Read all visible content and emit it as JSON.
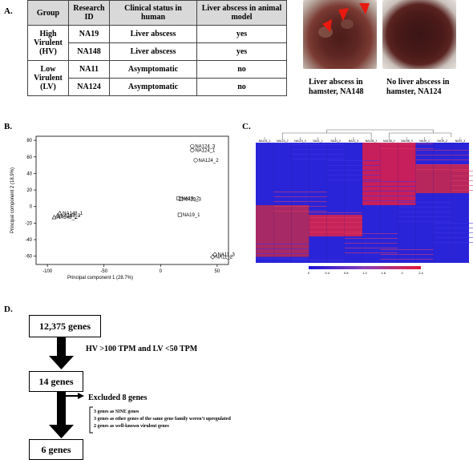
{
  "panel_labels": {
    "a": "A.",
    "b": "B.",
    "c": "C.",
    "d": "D."
  },
  "table": {
    "headers": [
      "Group",
      "Research ID",
      "Clinical status in human",
      "Liver abscess in animal model"
    ],
    "groups": [
      "High Virulent (HV)",
      "Low Virulent (LV)"
    ],
    "rows": [
      {
        "id": "NA19",
        "status": "Liver abscess",
        "animal": "yes"
      },
      {
        "id": "NA148",
        "status": "Liver abscess",
        "animal": "yes"
      },
      {
        "id": "NA11",
        "status": "Asymptomatic",
        "animal": "no"
      },
      {
        "id": "NA124",
        "status": "Asymptomatic",
        "animal": "no"
      }
    ]
  },
  "photos": {
    "left_caption": "Liver abscess in hamster, NA148",
    "right_caption": "No liver abscess in hamster, NA124"
  },
  "chart_data": {
    "type": "scatter",
    "xlabel": "Principal component 1 (28.7%)",
    "ylabel": "Principal component 2 (18.9%)",
    "xlim": [
      -110,
      60
    ],
    "ylim": [
      -70,
      85
    ],
    "xticks": [
      -100,
      -50,
      0,
      50
    ],
    "yticks": [
      80,
      60,
      40,
      20,
      0,
      -20,
      -40,
      -60
    ],
    "points": [
      {
        "label": "NA124_3",
        "x": 28,
        "y": 73,
        "marker": "circle"
      },
      {
        "label": "NA124_1",
        "x": 28,
        "y": 68,
        "marker": "circle"
      },
      {
        "label": "NA124_2",
        "x": 31,
        "y": 56,
        "marker": "circle"
      },
      {
        "label": "NA19_2",
        "x": 16,
        "y": 10,
        "marker": "square"
      },
      {
        "label": "NA19_3",
        "x": 18,
        "y": 9,
        "marker": "square"
      },
      {
        "label": "NA19_1",
        "x": 17,
        "y": -10,
        "marker": "square"
      },
      {
        "label": "NA148_1",
        "x": -89,
        "y": -8,
        "marker": "triangle"
      },
      {
        "label": "NA148_3",
        "x": -91,
        "y": -11,
        "marker": "triangle"
      },
      {
        "label": "NA148_2",
        "x": -94,
        "y": -13,
        "marker": "triangle"
      },
      {
        "label": "NA11_3",
        "x": 48,
        "y": -58,
        "marker": "diamond"
      },
      {
        "label": "NA11_2",
        "x": 46,
        "y": -61,
        "marker": "diamond"
      }
    ]
  },
  "heatmap": {
    "columns": [
      "NA124_1",
      "NA124_2",
      "NA124_3",
      "NA11_1",
      "NA11_2",
      "NA11_3",
      "NA148_1",
      "NA148_2",
      "NA148_3",
      "NA19_1",
      "NA19_2",
      "NA19_3"
    ],
    "scale_ticks": [
      "0",
      "0.4",
      "0.8",
      "1.2",
      "1.6",
      "2",
      "2.4"
    ]
  },
  "flow": {
    "start": "12,375 genes",
    "filter": "HV >100 TPM and LV <50 TPM",
    "mid": "14 genes",
    "excluded": "Excluded 8 genes",
    "reasons": [
      "3 genes as SINE genes",
      "3 genes as other genes of the same gene family weren’t upregulated",
      "2 genes as well-known virulent genes"
    ],
    "end": "6 genes"
  }
}
